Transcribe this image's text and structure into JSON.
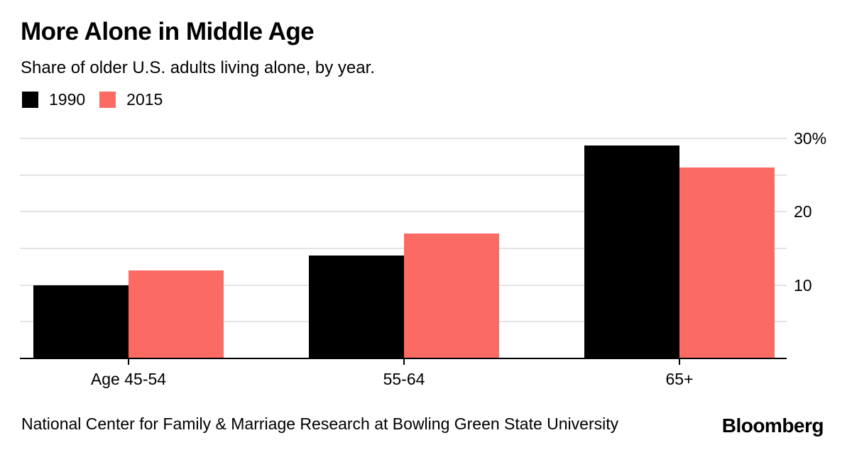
{
  "header": {
    "title": "More Alone in Middle Age",
    "subtitle": "Share of older U.S. adults living alone, by year."
  },
  "legend": [
    {
      "label": "1990",
      "color": "#000000"
    },
    {
      "label": "2015",
      "color": "#fc6a64"
    }
  ],
  "chart_data": {
    "type": "bar",
    "title": "More Alone in Middle Age",
    "subtitle": "Share of older U.S. adults living alone, by year.",
    "categories": [
      "Age 45-54",
      "55-64",
      "65+"
    ],
    "series": [
      {
        "name": "1990",
        "color": "#000000",
        "values": [
          10,
          14,
          29
        ]
      },
      {
        "name": "2015",
        "color": "#fc6a64",
        "values": [
          12,
          17,
          26
        ]
      }
    ],
    "xlabel": "",
    "ylabel": "",
    "ylim": [
      0,
      31.5
    ],
    "yticks": [
      {
        "value": 10,
        "label": "10"
      },
      {
        "value": 20,
        "label": "20"
      },
      {
        "value": 30,
        "label": "30%"
      }
    ],
    "gridlines": [
      5,
      10,
      15,
      20,
      25,
      30
    ],
    "grid": true,
    "legend_position": "top-left",
    "value_axis_side": "right"
  },
  "footer": {
    "source": "National Center for Family & Marriage Research at Bowling Green State University",
    "brand": "Bloomberg"
  },
  "colors": {
    "background": "#ffffff",
    "grid": "#e4e4e4",
    "axis": "#000000",
    "text": "#000000"
  }
}
